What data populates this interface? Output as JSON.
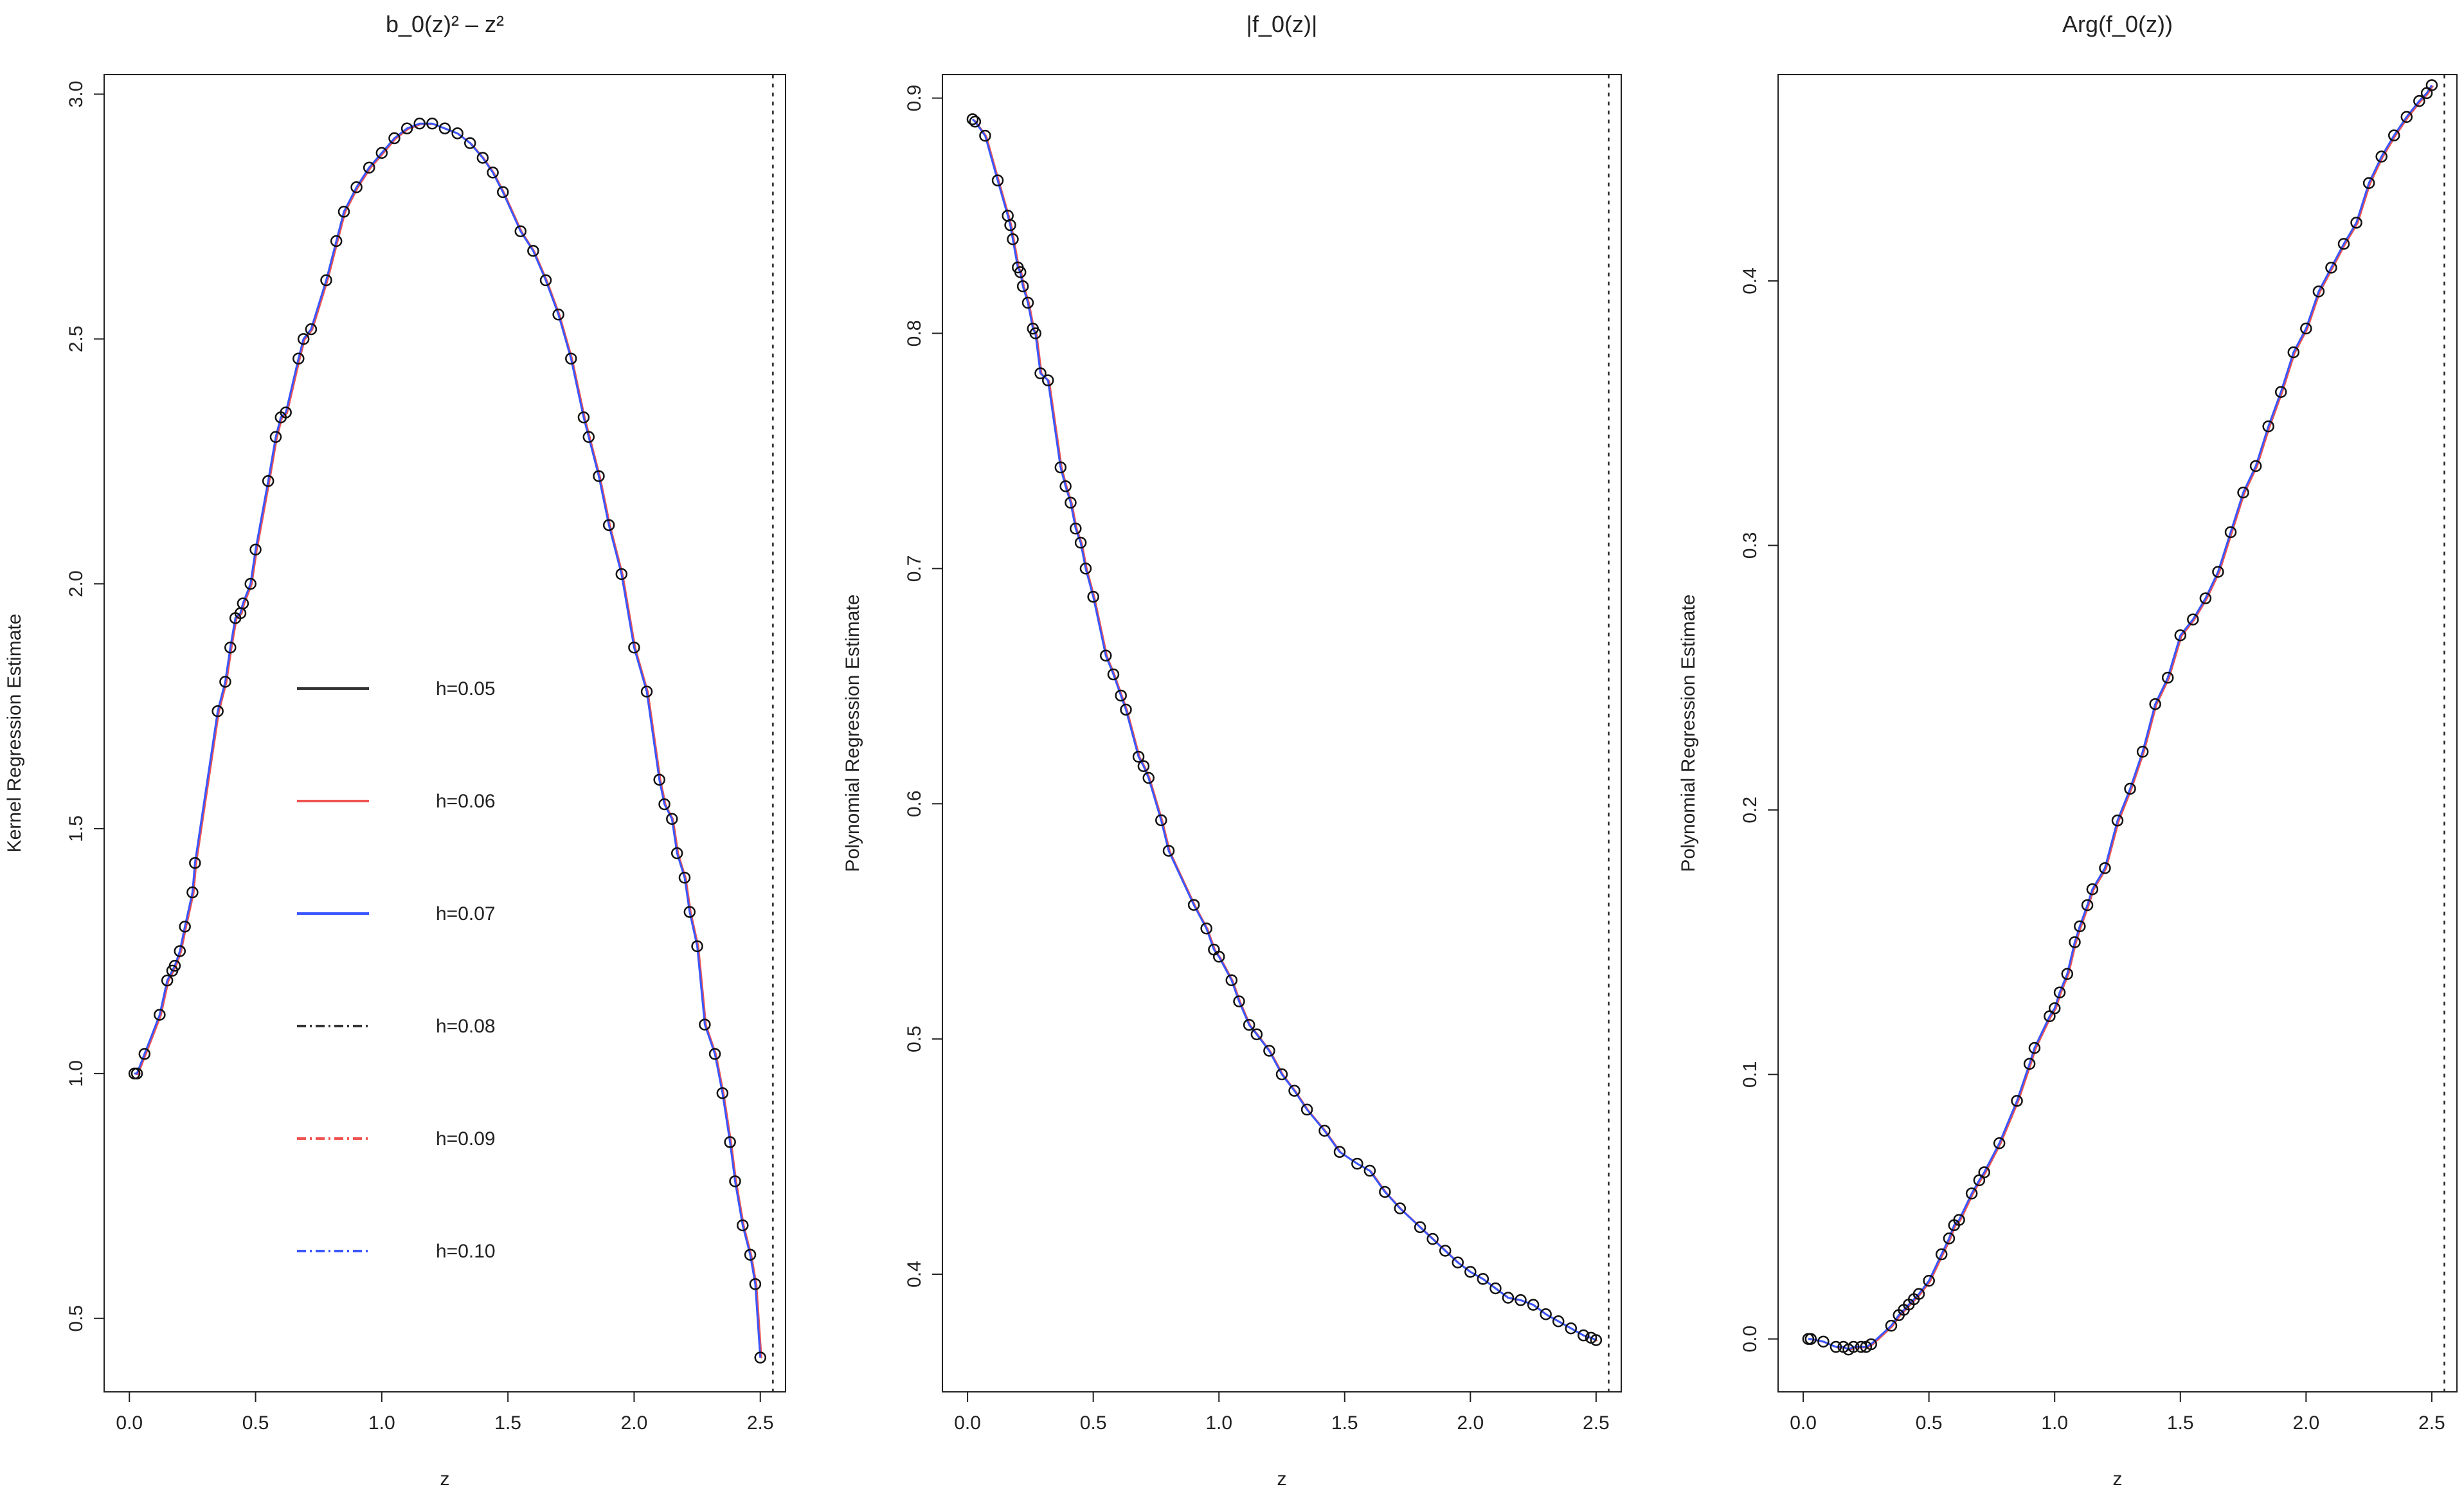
{
  "chart_data": [
    {
      "type": "scatter",
      "title": "b_0(z)² – z²",
      "xlabel": "z",
      "ylabel": "Kernel Regression Estimate",
      "xlim": [
        -0.1,
        2.6
      ],
      "ylim": [
        0.35,
        3.04
      ],
      "xticks": [
        "0.0",
        "0.5",
        "1.0",
        "1.5",
        "2.0",
        "2.5"
      ],
      "yticks": [
        "0.5",
        "1.0",
        "1.5",
        "2.0",
        "2.5",
        "3.0"
      ],
      "vline": 2.55,
      "points": {
        "x": [
          0.02,
          0.03,
          0.06,
          0.12,
          0.15,
          0.17,
          0.18,
          0.2,
          0.22,
          0.25,
          0.26,
          0.35,
          0.38,
          0.4,
          0.42,
          0.44,
          0.45,
          0.48,
          0.5,
          0.55,
          0.58,
          0.6,
          0.62,
          0.67,
          0.69,
          0.72,
          0.78,
          0.82,
          0.85,
          0.9,
          0.95,
          1.0,
          1.05,
          1.1,
          1.15,
          1.2,
          1.25,
          1.3,
          1.35,
          1.4,
          1.44,
          1.48,
          1.55,
          1.6,
          1.65,
          1.7,
          1.75,
          1.8,
          1.82,
          1.86,
          1.9,
          1.95,
          2.0,
          2.05,
          2.1,
          2.12,
          2.15,
          2.17,
          2.2,
          2.22,
          2.25,
          2.28,
          2.32,
          2.35,
          2.38,
          2.4,
          2.43,
          2.46,
          2.48,
          2.5
        ],
        "y": [
          1.0,
          1.0,
          1.04,
          1.12,
          1.19,
          1.21,
          1.22,
          1.25,
          1.3,
          1.37,
          1.43,
          1.74,
          1.8,
          1.87,
          1.93,
          1.94,
          1.96,
          2.0,
          2.07,
          2.21,
          2.3,
          2.34,
          2.35,
          2.46,
          2.5,
          2.52,
          2.62,
          2.7,
          2.76,
          2.81,
          2.85,
          2.88,
          2.91,
          2.93,
          2.94,
          2.94,
          2.93,
          2.92,
          2.9,
          2.87,
          2.84,
          2.8,
          2.72,
          2.68,
          2.62,
          2.55,
          2.46,
          2.34,
          2.3,
          2.22,
          2.12,
          2.02,
          1.87,
          1.78,
          1.6,
          1.55,
          1.52,
          1.45,
          1.4,
          1.33,
          1.26,
          1.1,
          1.04,
          0.96,
          0.86,
          0.78,
          0.69,
          0.63,
          0.57,
          0.42
        ]
      },
      "legend": {
        "position": "center-left",
        "entries": [
          {
            "label": "h=0.05",
            "color": "#333333",
            "dash": "solid"
          },
          {
            "label": "h=0.06",
            "color": "#ef5350",
            "dash": "solid"
          },
          {
            "label": "h=0.07",
            "color": "#3a56ff",
            "dash": "solid"
          },
          {
            "label": "h=0.08",
            "color": "#333333",
            "dash": "dotdash"
          },
          {
            "label": "h=0.09",
            "color": "#ef5350",
            "dash": "dotdash"
          },
          {
            "label": "h=0.10",
            "color": "#3a56ff",
            "dash": "dotdash"
          }
        ]
      }
    },
    {
      "type": "scatter",
      "title": "|f_0(z)|",
      "xlabel": "z",
      "ylabel": "Polynomial Regression Estimate",
      "xlim": [
        -0.1,
        2.6
      ],
      "ylim": [
        0.35,
        0.91
      ],
      "xticks": [
        "0.0",
        "0.5",
        "1.0",
        "1.5",
        "2.0",
        "2.5"
      ],
      "yticks": [
        "0.4",
        "0.5",
        "0.6",
        "0.7",
        "0.8",
        "0.9"
      ],
      "vline": 2.55,
      "points": {
        "x": [
          0.02,
          0.03,
          0.07,
          0.12,
          0.16,
          0.17,
          0.18,
          0.2,
          0.21,
          0.22,
          0.24,
          0.26,
          0.27,
          0.29,
          0.32,
          0.37,
          0.39,
          0.41,
          0.43,
          0.45,
          0.47,
          0.5,
          0.55,
          0.58,
          0.61,
          0.63,
          0.68,
          0.7,
          0.72,
          0.77,
          0.8,
          0.9,
          0.95,
          0.98,
          1.0,
          1.05,
          1.08,
          1.12,
          1.15,
          1.2,
          1.25,
          1.3,
          1.35,
          1.42,
          1.48,
          1.55,
          1.6,
          1.66,
          1.72,
          1.8,
          1.85,
          1.9,
          1.95,
          2.0,
          2.05,
          2.1,
          2.15,
          2.2,
          2.25,
          2.3,
          2.35,
          2.4,
          2.45,
          2.48,
          2.5
        ],
        "y": [
          0.891,
          0.89,
          0.884,
          0.865,
          0.85,
          0.846,
          0.84,
          0.828,
          0.826,
          0.82,
          0.813,
          0.802,
          0.8,
          0.783,
          0.78,
          0.743,
          0.735,
          0.728,
          0.717,
          0.711,
          0.7,
          0.688,
          0.663,
          0.655,
          0.646,
          0.64,
          0.62,
          0.616,
          0.611,
          0.593,
          0.58,
          0.557,
          0.547,
          0.538,
          0.535,
          0.525,
          0.516,
          0.506,
          0.502,
          0.495,
          0.485,
          0.478,
          0.47,
          0.461,
          0.452,
          0.447,
          0.444,
          0.435,
          0.428,
          0.42,
          0.415,
          0.41,
          0.405,
          0.401,
          0.398,
          0.394,
          0.39,
          0.389,
          0.387,
          0.383,
          0.38,
          0.377,
          0.374,
          0.373,
          0.372
        ]
      }
    },
    {
      "type": "scatter",
      "title": "Arg(f_0(z))",
      "xlabel": "z",
      "ylabel": "Polynomial Regression Estimate",
      "xlim": [
        -0.1,
        2.6
      ],
      "ylim": [
        -0.02,
        0.478
      ],
      "xticks": [
        "0.0",
        "0.5",
        "1.0",
        "1.5",
        "2.0",
        "2.5"
      ],
      "yticks": [
        "0.0",
        "0.1",
        "0.2",
        "0.3",
        "0.4"
      ],
      "vline": 2.55,
      "points": {
        "x": [
          0.02,
          0.03,
          0.08,
          0.13,
          0.16,
          0.18,
          0.2,
          0.23,
          0.25,
          0.27,
          0.35,
          0.38,
          0.4,
          0.42,
          0.44,
          0.46,
          0.5,
          0.55,
          0.58,
          0.6,
          0.62,
          0.67,
          0.7,
          0.72,
          0.78,
          0.85,
          0.9,
          0.92,
          0.98,
          1.0,
          1.02,
          1.05,
          1.08,
          1.1,
          1.13,
          1.15,
          1.2,
          1.25,
          1.3,
          1.35,
          1.4,
          1.45,
          1.5,
          1.55,
          1.6,
          1.65,
          1.7,
          1.75,
          1.8,
          1.85,
          1.9,
          1.95,
          2.0,
          2.05,
          2.1,
          2.15,
          2.2,
          2.25,
          2.3,
          2.35,
          2.4,
          2.45,
          2.48,
          2.5
        ],
        "y": [
          0.0,
          0.0,
          -0.001,
          -0.003,
          -0.003,
          -0.004,
          -0.003,
          -0.003,
          -0.003,
          -0.002,
          0.005,
          0.009,
          0.011,
          0.013,
          0.015,
          0.017,
          0.022,
          0.032,
          0.038,
          0.043,
          0.045,
          0.055,
          0.06,
          0.063,
          0.074,
          0.09,
          0.104,
          0.11,
          0.122,
          0.125,
          0.131,
          0.138,
          0.15,
          0.156,
          0.164,
          0.17,
          0.178,
          0.196,
          0.208,
          0.222,
          0.24,
          0.25,
          0.266,
          0.272,
          0.28,
          0.29,
          0.305,
          0.32,
          0.33,
          0.345,
          0.358,
          0.373,
          0.382,
          0.396,
          0.405,
          0.414,
          0.422,
          0.437,
          0.447,
          0.455,
          0.462,
          0.468,
          0.471,
          0.474
        ]
      }
    }
  ]
}
